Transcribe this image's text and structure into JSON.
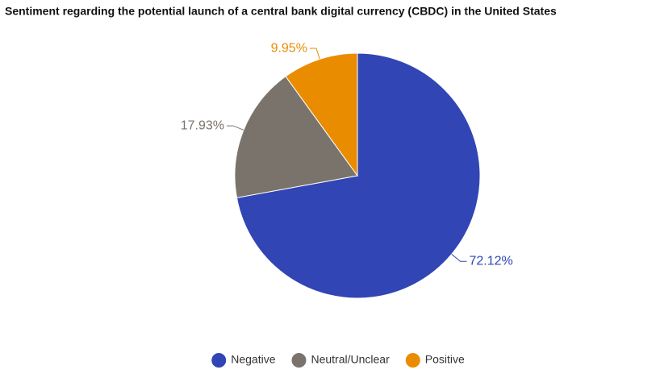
{
  "chart_data": {
    "type": "pie",
    "title": "Sentiment regarding the potential launch of a central bank digital currency (CBDC) in the United States",
    "categories": [
      "Negative",
      "Neutral/Unclear",
      "Positive"
    ],
    "values": [
      72.12,
      17.93,
      9.95
    ],
    "value_labels": [
      "72.12%",
      "17.93%",
      "9.95%"
    ],
    "colors": [
      "#3145b5",
      "#7a736b",
      "#ea8c00"
    ],
    "legend": "bottom"
  }
}
